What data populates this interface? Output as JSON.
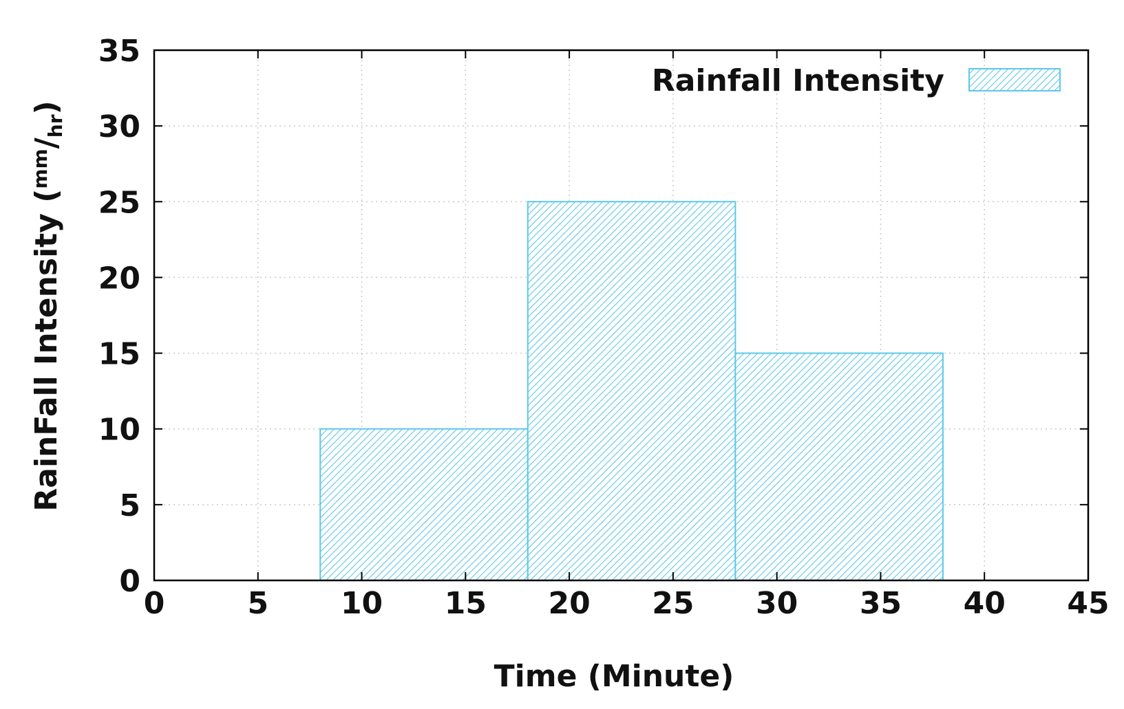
{
  "chart_data": {
    "type": "bar",
    "x_label": "Time (Minute)",
    "y_label": {
      "main": "RainFall Intensity (",
      "unit_num": "mm",
      "unit_sep": "/",
      "unit_den": "hr",
      "close": ")"
    },
    "xlim": [
      0,
      45
    ],
    "ylim": [
      0,
      35
    ],
    "x_ticks": [
      0,
      5,
      10,
      15,
      20,
      25,
      30,
      35,
      40,
      45
    ],
    "y_ticks": [
      0,
      5,
      10,
      15,
      20,
      25,
      30,
      35
    ],
    "grid": true,
    "legend": {
      "position": "top-right",
      "label": "Rainfall Intensity"
    },
    "series": [
      {
        "name": "Rainfall Intensity",
        "color": "#5bc8e8",
        "fill": "hatched",
        "bars": [
          {
            "x_start": 8,
            "x_end": 18,
            "value": 10
          },
          {
            "x_start": 18,
            "x_end": 28,
            "value": 25
          },
          {
            "x_start": 28,
            "x_end": 38,
            "value": 15
          }
        ]
      }
    ]
  }
}
